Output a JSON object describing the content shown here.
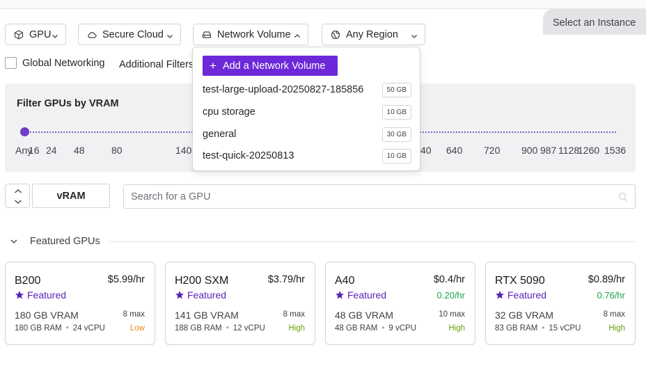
{
  "header": {
    "select_instance": "Select an Instance"
  },
  "filters": {
    "gpu": "GPU",
    "cloud": "Secure Cloud",
    "network_volume": "Network Volume",
    "region": "Any Region"
  },
  "options": {
    "global_networking": "Global Networking",
    "global_networking_checked": false,
    "additional_filters": "Additional Filters"
  },
  "vram_filter": {
    "title": "Filter GPUs by VRAM",
    "ticks": [
      "Any",
      "16",
      "24",
      "48",
      "80",
      "140",
      "40",
      "640",
      "720",
      "900",
      "987",
      "1128",
      "1260",
      "1536"
    ],
    "selected": "Any",
    "accent": "#6d3fc6"
  },
  "sort": {
    "label": "vRAM"
  },
  "search": {
    "placeholder": "Search for a GPU",
    "value": ""
  },
  "featured": {
    "title": "Featured GPUs",
    "badge": "Featured",
    "cards": [
      {
        "name": "B200",
        "price": "$5.99/hr",
        "spot": "",
        "vram": "180 GB VRAM",
        "max": "8 max",
        "ram": "180 GB RAM",
        "vcpu": "24 vCPU",
        "availability": "Low",
        "availability_color": "#ea8a1a"
      },
      {
        "name": "H200 SXM",
        "price": "$3.79/hr",
        "spot": "",
        "vram": "141 GB VRAM",
        "max": "8 max",
        "ram": "188 GB RAM",
        "vcpu": "12 vCPU",
        "availability": "High",
        "availability_color": "#65a30d"
      },
      {
        "name": "A40",
        "price": "$0.4/hr",
        "spot": "0.20/hr",
        "vram": "48 GB VRAM",
        "max": "10 max",
        "ram": "48 GB RAM",
        "vcpu": "9 vCPU",
        "availability": "High",
        "availability_color": "#65a30d"
      },
      {
        "name": "RTX 5090",
        "price": "$0.89/hr",
        "spot": "0.76/hr",
        "vram": "32 GB VRAM",
        "max": "8 max",
        "ram": "83 GB RAM",
        "vcpu": "15 vCPU",
        "availability": "High",
        "availability_color": "#65a30d"
      }
    ]
  },
  "network_volume_menu": {
    "add_label": "Add a Network Volume",
    "volumes": [
      {
        "name": "test-large-upload-20250827-185856",
        "size": "50 GB"
      },
      {
        "name": "cpu storage",
        "size": "10 GB"
      },
      {
        "name": "general",
        "size": "30 GB"
      },
      {
        "name": "test-quick-20250813",
        "size": "10 GB"
      }
    ]
  },
  "colors": {
    "brand": "#6d28d9",
    "featured_text": "#5b21b6",
    "spot_price": "#16a34a"
  }
}
